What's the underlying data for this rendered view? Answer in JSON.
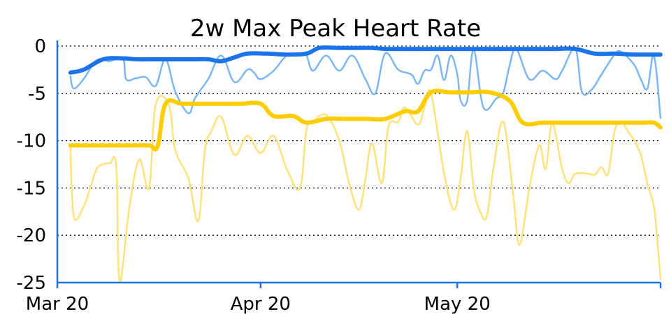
{
  "chart_data": {
    "type": "line",
    "title": "2w Max Peak Heart Rate",
    "xlabel": "",
    "ylabel": "",
    "x_ticks": [
      {
        "label": "Mar 20",
        "day": 0
      },
      {
        "label": "Apr 20",
        "day": 31
      },
      {
        "label": "May 20",
        "day": 61
      }
    ],
    "xlim": [
      0,
      92
    ],
    "ylim": [
      -25,
      0
    ],
    "y_ticks": [
      0,
      -5,
      -10,
      -15,
      -20,
      -25
    ],
    "grid": true,
    "series": [
      {
        "color": "#1a73e8",
        "width": 6,
        "opacity": 1,
        "points": [
          [
            2,
            -2.8
          ],
          [
            4,
            -2.5
          ],
          [
            7,
            -1.4
          ],
          [
            10,
            -1.3
          ],
          [
            12,
            -1.4
          ],
          [
            15,
            -1.4
          ],
          [
            18,
            -1.4
          ],
          [
            21,
            -1.4
          ],
          [
            23,
            -1.4
          ],
          [
            25,
            -1.6
          ],
          [
            27,
            -1.2
          ],
          [
            29,
            -0.8
          ],
          [
            32,
            -0.8
          ],
          [
            35,
            -0.9
          ],
          [
            38,
            -0.8
          ],
          [
            40,
            -0.2
          ],
          [
            43,
            -0.2
          ],
          [
            46,
            -0.2
          ],
          [
            48,
            -0.2
          ],
          [
            50,
            -0.3
          ],
          [
            53,
            -0.3
          ],
          [
            56,
            -0.3
          ],
          [
            58,
            -0.3
          ],
          [
            61,
            -0.3
          ],
          [
            64,
            -0.3
          ],
          [
            67,
            -0.3
          ],
          [
            70,
            -0.3
          ],
          [
            73,
            -0.3
          ],
          [
            76,
            -0.3
          ],
          [
            79,
            -0.3
          ],
          [
            82,
            -0.8
          ],
          [
            85,
            -0.8
          ],
          [
            88,
            -0.9
          ],
          [
            91,
            -0.9
          ],
          [
            92,
            -0.9
          ]
        ]
      },
      {
        "color": "#7db7f2",
        "width": 2.5,
        "opacity": 1,
        "points": [
          [
            2,
            -3.2
          ],
          [
            2.5,
            -4.5
          ],
          [
            4,
            -3.5
          ],
          [
            6,
            -1.5
          ],
          [
            8,
            -1.6
          ],
          [
            10,
            -1.3
          ],
          [
            10.5,
            -3.5
          ],
          [
            12,
            -3.4
          ],
          [
            13.5,
            -3.3
          ],
          [
            15,
            -4.2
          ],
          [
            16.5,
            -1.4
          ],
          [
            18,
            -4.8
          ],
          [
            20,
            -7.1
          ],
          [
            21,
            -5.5
          ],
          [
            23,
            -3.5
          ],
          [
            25,
            -1.0
          ],
          [
            27,
            -3.8
          ],
          [
            29,
            -2.5
          ],
          [
            30,
            -2.8
          ],
          [
            31,
            -3.5
          ],
          [
            33,
            -2.6
          ],
          [
            35,
            -1.0
          ],
          [
            37,
            -0.8
          ],
          [
            38,
            -1.0
          ],
          [
            39,
            -2.6
          ],
          [
            41,
            -1.0
          ],
          [
            43,
            -2.6
          ],
          [
            45,
            -1.0
          ],
          [
            47,
            -3.5
          ],
          [
            48.5,
            -5.0
          ],
          [
            50,
            -0.8
          ],
          [
            52,
            -2.5
          ],
          [
            54,
            -3.0
          ],
          [
            55,
            -4.0
          ],
          [
            56,
            -2.6
          ],
          [
            57,
            -2.5
          ],
          [
            58,
            -1.0
          ],
          [
            59,
            -3.6
          ],
          [
            60,
            -1.0
          ],
          [
            61,
            -3.0
          ],
          [
            61.5,
            -5.7
          ],
          [
            62.5,
            -5.8
          ],
          [
            63.5,
            -0.4
          ],
          [
            65,
            -6.5
          ],
          [
            67,
            -5.5
          ],
          [
            68,
            -5.0
          ],
          [
            69,
            -2.0
          ],
          [
            70,
            -0.3
          ],
          [
            72,
            -3.5
          ],
          [
            74,
            -2.6
          ],
          [
            76,
            -3.5
          ],
          [
            77,
            -2.6
          ],
          [
            79,
            -0.3
          ],
          [
            80,
            -4.8
          ],
          [
            81.5,
            -4.6
          ],
          [
            83,
            -3.0
          ],
          [
            85,
            -0.9
          ],
          [
            86,
            -0.6
          ],
          [
            88,
            -2.0
          ],
          [
            89,
            -3.5
          ],
          [
            90,
            -4.5
          ],
          [
            91,
            -1.0
          ],
          [
            92,
            -7.6
          ]
        ]
      },
      {
        "color": "#ffcc00",
        "width": 6,
        "opacity": 1,
        "points": [
          [
            2,
            -10.5
          ],
          [
            5,
            -10.5
          ],
          [
            8,
            -10.5
          ],
          [
            11,
            -10.5
          ],
          [
            14,
            -10.5
          ],
          [
            15.3,
            -10.6
          ],
          [
            16.5,
            -6.1
          ],
          [
            19,
            -6.1
          ],
          [
            22,
            -6.1
          ],
          [
            25,
            -6.1
          ],
          [
            28,
            -6.1
          ],
          [
            31,
            -6.1
          ],
          [
            33,
            -7.4
          ],
          [
            36,
            -7.4
          ],
          [
            38,
            -8.1
          ],
          [
            41,
            -7.7
          ],
          [
            44,
            -7.7
          ],
          [
            47,
            -7.7
          ],
          [
            50,
            -7.7
          ],
          [
            53,
            -6.9
          ],
          [
            55,
            -6.9
          ],
          [
            57,
            -4.9
          ],
          [
            60,
            -4.9
          ],
          [
            63,
            -4.9
          ],
          [
            66,
            -4.9
          ],
          [
            69,
            -5.8
          ],
          [
            71,
            -8.1
          ],
          [
            74,
            -8.1
          ],
          [
            77,
            -8.1
          ],
          [
            80,
            -8.1
          ],
          [
            83,
            -8.1
          ],
          [
            86,
            -8.1
          ],
          [
            89,
            -8.1
          ],
          [
            91,
            -8.1
          ],
          [
            92,
            -8.6
          ]
        ]
      },
      {
        "color": "#ffe27a",
        "width": 2.5,
        "opacity": 1,
        "points": [
          [
            2,
            -10.8
          ],
          [
            2.5,
            -18.0
          ],
          [
            4,
            -17.0
          ],
          [
            5,
            -15.0
          ],
          [
            6,
            -13.0
          ],
          [
            7,
            -12.5
          ],
          [
            8,
            -12.4
          ],
          [
            9,
            -12.8
          ],
          [
            9.5,
            -24.8
          ],
          [
            11,
            -17.0
          ],
          [
            12.5,
            -12.0
          ],
          [
            14,
            -15.0
          ],
          [
            15,
            -6.2
          ],
          [
            17,
            -6.2
          ],
          [
            18,
            -11.0
          ],
          [
            20,
            -14.0
          ],
          [
            21.5,
            -18.5
          ],
          [
            22.5,
            -11.0
          ],
          [
            23.5,
            -9.0
          ],
          [
            25,
            -7.5
          ],
          [
            27,
            -11.5
          ],
          [
            29,
            -9.5
          ],
          [
            31,
            -11.3
          ],
          [
            33,
            -9.5
          ],
          [
            35,
            -13.0
          ],
          [
            37,
            -15.0
          ],
          [
            38,
            -8.8
          ],
          [
            39,
            -8.0
          ],
          [
            41,
            -7.3
          ],
          [
            43,
            -10.0
          ],
          [
            44.5,
            -14.5
          ],
          [
            46,
            -17.3
          ],
          [
            47,
            -14.0
          ],
          [
            48,
            -10.3
          ],
          [
            49.5,
            -14.5
          ],
          [
            50.5,
            -8.5
          ],
          [
            52,
            -8.0
          ],
          [
            53,
            -6.5
          ],
          [
            55,
            -8.3
          ],
          [
            56,
            -6.5
          ],
          [
            57,
            -5.0
          ],
          [
            59,
            -13.5
          ],
          [
            60.5,
            -17.3
          ],
          [
            61.5,
            -14.0
          ],
          [
            62.5,
            -9.0
          ],
          [
            63.5,
            -15.0
          ],
          [
            64.5,
            -17.5
          ],
          [
            65.5,
            -18.0
          ],
          [
            66.5,
            -13.0
          ],
          [
            68,
            -8.0
          ],
          [
            69.5,
            -15.5
          ],
          [
            70.5,
            -21.0
          ],
          [
            72,
            -15.0
          ],
          [
            73.5,
            -10.5
          ],
          [
            74.5,
            -13.0
          ],
          [
            75.5,
            -8.2
          ],
          [
            77,
            -13.0
          ],
          [
            78,
            -14.5
          ],
          [
            79,
            -13.5
          ],
          [
            81,
            -13.5
          ],
          [
            82,
            -13.6
          ],
          [
            83,
            -12.8
          ],
          [
            84,
            -13.5
          ],
          [
            85,
            -9.0
          ],
          [
            86,
            -8.0
          ],
          [
            87,
            -9.0
          ],
          [
            88,
            -10.0
          ],
          [
            89,
            -11.5
          ],
          [
            90,
            -14.5
          ],
          [
            91,
            -17.0
          ],
          [
            91.5,
            -20.5
          ],
          [
            92,
            -24.6
          ]
        ]
      }
    ]
  }
}
